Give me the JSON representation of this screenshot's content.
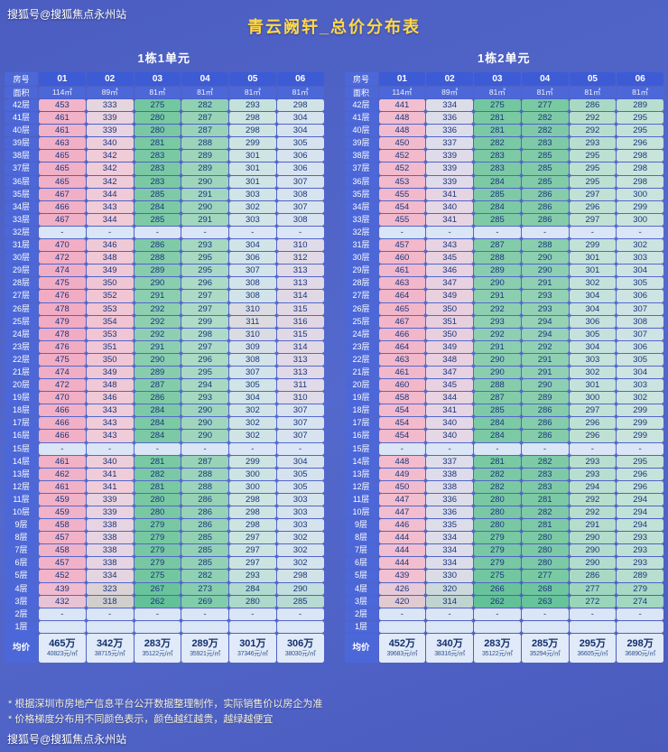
{
  "watermark_top": "搜狐号@搜狐焦点永州站",
  "watermark_bottom": "搜狐号@搜狐焦点永州站",
  "title": "青云阙轩_总价分布表",
  "footnotes": [
    "* 根据深圳市房地产信息平台公开数据整理制作，实际销售价以房企为准",
    "* 价格梯度分布用不同颜色表示，颜色越红越贵，越绿越便宜"
  ],
  "chart_data": {
    "type": "heatmap",
    "value_unit": "万",
    "colors": {
      "header_cell": "#3e5bd6",
      "label_cell": "#4c67d8",
      "cell_text": "#1a367c",
      "empty_cell": "#dae5f5",
      "avg_cell": "#e0eaf8",
      "title": "#ffd84a",
      "column_blend": 0.62,
      "scale_stops": [
        [
          32000,
          "#2eb180"
        ],
        [
          33600,
          "#5ec295"
        ],
        [
          35100,
          "#7ecaa6"
        ],
        [
          35900,
          "#a6d8c2"
        ],
        [
          36700,
          "#c7e4d9"
        ],
        [
          37400,
          "#d3e4ea"
        ],
        [
          38050,
          "#d9e2f2"
        ],
        [
          38300,
          "#f0cdda"
        ],
        [
          39700,
          "#f2bacc"
        ],
        [
          42200,
          "#f0a2bd"
        ]
      ]
    },
    "tables": [
      {
        "name": "1栋1单元",
        "room_header_label": "房号",
        "area_label": "面积",
        "columns": [
          "01",
          "02",
          "03",
          "04",
          "05",
          "06"
        ],
        "areas": [
          "114㎡",
          "89㎡",
          "81㎡",
          "81㎡",
          "81㎡",
          "81㎡"
        ],
        "area_values": [
          114,
          89,
          81,
          81,
          81,
          81
        ],
        "rows": [
          {
            "floor": "42层",
            "values": [
              453,
              333,
              275,
              282,
              293,
              298
            ]
          },
          {
            "floor": "41层",
            "values": [
              461,
              339,
              280,
              287,
              298,
              304
            ]
          },
          {
            "floor": "40层",
            "values": [
              461,
              339,
              280,
              287,
              298,
              304
            ]
          },
          {
            "floor": "39层",
            "values": [
              463,
              340,
              281,
              288,
              299,
              305
            ]
          },
          {
            "floor": "38层",
            "values": [
              465,
              342,
              283,
              289,
              301,
              306
            ]
          },
          {
            "floor": "37层",
            "values": [
              465,
              342,
              283,
              289,
              301,
              306
            ]
          },
          {
            "floor": "36层",
            "values": [
              465,
              342,
              283,
              290,
              301,
              307
            ]
          },
          {
            "floor": "35层",
            "values": [
              467,
              344,
              285,
              291,
              303,
              308
            ]
          },
          {
            "floor": "34层",
            "values": [
              466,
              343,
              284,
              290,
              302,
              307
            ]
          },
          {
            "floor": "33层",
            "values": [
              467,
              344,
              285,
              291,
              303,
              308
            ]
          },
          {
            "floor": "32层",
            "values": [
              "-",
              "-",
              "-",
              "-",
              "-",
              "-"
            ]
          },
          {
            "floor": "31层",
            "values": [
              470,
              346,
              286,
              293,
              304,
              310
            ]
          },
          {
            "floor": "30层",
            "values": [
              472,
              348,
              288,
              295,
              306,
              312
            ]
          },
          {
            "floor": "29层",
            "values": [
              474,
              349,
              289,
              295,
              307,
              313
            ]
          },
          {
            "floor": "28层",
            "values": [
              475,
              350,
              290,
              296,
              308,
              313
            ]
          },
          {
            "floor": "27层",
            "values": [
              476,
              352,
              291,
              297,
              308,
              314
            ]
          },
          {
            "floor": "26层",
            "values": [
              478,
              353,
              292,
              297,
              310,
              315
            ]
          },
          {
            "floor": "25层",
            "values": [
              479,
              354,
              292,
              299,
              311,
              316
            ]
          },
          {
            "floor": "24层",
            "values": [
              478,
              353,
              292,
              298,
              310,
              315
            ]
          },
          {
            "floor": "23层",
            "values": [
              476,
              351,
              291,
              297,
              309,
              314
            ]
          },
          {
            "floor": "22层",
            "values": [
              475,
              350,
              290,
              296,
              308,
              313
            ]
          },
          {
            "floor": "21层",
            "values": [
              474,
              349,
              289,
              295,
              307,
              313
            ]
          },
          {
            "floor": "20层",
            "values": [
              472,
              348,
              287,
              294,
              305,
              311
            ]
          },
          {
            "floor": "19层",
            "values": [
              470,
              346,
              286,
              293,
              304,
              310
            ]
          },
          {
            "floor": "18层",
            "values": [
              466,
              343,
              284,
              290,
              302,
              307
            ]
          },
          {
            "floor": "17层",
            "values": [
              466,
              343,
              284,
              290,
              302,
              307
            ]
          },
          {
            "floor": "16层",
            "values": [
              466,
              343,
              284,
              290,
              302,
              307
            ]
          },
          {
            "floor": "15层",
            "values": [
              "-",
              "-",
              "-",
              "-",
              "-",
              "-"
            ]
          },
          {
            "floor": "14层",
            "values": [
              461,
              340,
              281,
              287,
              299,
              304
            ]
          },
          {
            "floor": "13层",
            "values": [
              462,
              341,
              282,
              288,
              300,
              305
            ]
          },
          {
            "floor": "12层",
            "values": [
              461,
              341,
              281,
              288,
              300,
              305
            ]
          },
          {
            "floor": "11层",
            "values": [
              459,
              339,
              280,
              286,
              298,
              303
            ]
          },
          {
            "floor": "10层",
            "values": [
              459,
              339,
              280,
              286,
              298,
              303
            ]
          },
          {
            "floor": "9层",
            "values": [
              458,
              338,
              279,
              286,
              298,
              303
            ]
          },
          {
            "floor": "8层",
            "values": [
              457,
              338,
              279,
              285,
              297,
              302
            ]
          },
          {
            "floor": "7层",
            "values": [
              458,
              338,
              279,
              285,
              297,
              302
            ]
          },
          {
            "floor": "6层",
            "values": [
              457,
              338,
              279,
              285,
              297,
              302
            ]
          },
          {
            "floor": "5层",
            "values": [
              452,
              334,
              275,
              282,
              293,
              298
            ]
          },
          {
            "floor": "4层",
            "values": [
              439,
              323,
              267,
              273,
              284,
              290
            ]
          },
          {
            "floor": "3层",
            "values": [
              432,
              318,
              262,
              269,
              280,
              285
            ]
          },
          {
            "floor": "2层",
            "values": [
              "-",
              "-",
              "-",
              "-",
              "-",
              "-"
            ]
          },
          {
            "floor": "1层",
            "values": [
              "",
              "",
              "",
              "",
              "",
              ""
            ]
          }
        ],
        "avg_label": "均价",
        "avg_prices": [
          "465万",
          "342万",
          "283万",
          "289万",
          "301万",
          "306万"
        ],
        "avg_unit_prices": [
          "40823元/㎡",
          "38715元/㎡",
          "35122元/㎡",
          "35921元/㎡",
          "37346元/㎡",
          "38030元/㎡"
        ]
      },
      {
        "name": "1栋2单元",
        "room_header_label": "房号",
        "area_label": "面积",
        "columns": [
          "01",
          "02",
          "03",
          "04",
          "05",
          "06"
        ],
        "areas": [
          "114㎡",
          "89㎡",
          "81㎡",
          "81㎡",
          "81㎡",
          "81㎡"
        ],
        "area_values": [
          114,
          89,
          81,
          81,
          81,
          81
        ],
        "rows": [
          {
            "floor": "42层",
            "values": [
              441,
              334,
              275,
              277,
              286,
              289
            ]
          },
          {
            "floor": "41层",
            "values": [
              448,
              336,
              281,
              282,
              292,
              295
            ]
          },
          {
            "floor": "40层",
            "values": [
              448,
              336,
              281,
              282,
              292,
              295
            ]
          },
          {
            "floor": "39层",
            "values": [
              450,
              337,
              282,
              283,
              293,
              296
            ]
          },
          {
            "floor": "38层",
            "values": [
              452,
              339,
              283,
              285,
              295,
              298
            ]
          },
          {
            "floor": "37层",
            "values": [
              452,
              339,
              283,
              285,
              295,
              298
            ]
          },
          {
            "floor": "36层",
            "values": [
              453,
              339,
              284,
              285,
              295,
              298
            ]
          },
          {
            "floor": "35层",
            "values": [
              455,
              341,
              285,
              286,
              297,
              300
            ]
          },
          {
            "floor": "34层",
            "values": [
              454,
              340,
              284,
              286,
              296,
              299
            ]
          },
          {
            "floor": "33层",
            "values": [
              455,
              341,
              285,
              286,
              297,
              300
            ]
          },
          {
            "floor": "32层",
            "values": [
              "-",
              "-",
              "-",
              "-",
              "-",
              "-"
            ]
          },
          {
            "floor": "31层",
            "values": [
              457,
              343,
              287,
              288,
              299,
              302
            ]
          },
          {
            "floor": "30层",
            "values": [
              460,
              345,
              288,
              290,
              301,
              303
            ]
          },
          {
            "floor": "29层",
            "values": [
              461,
              346,
              289,
              290,
              301,
              304
            ]
          },
          {
            "floor": "28层",
            "values": [
              463,
              347,
              290,
              291,
              302,
              305
            ]
          },
          {
            "floor": "27层",
            "values": [
              464,
              349,
              291,
              293,
              304,
              306
            ]
          },
          {
            "floor": "26层",
            "values": [
              465,
              350,
              292,
              293,
              304,
              307
            ]
          },
          {
            "floor": "25层",
            "values": [
              467,
              351,
              293,
              294,
              306,
              308
            ]
          },
          {
            "floor": "24层",
            "values": [
              466,
              350,
              292,
              294,
              305,
              307
            ]
          },
          {
            "floor": "23层",
            "values": [
              464,
              349,
              291,
              292,
              304,
              306
            ]
          },
          {
            "floor": "22层",
            "values": [
              463,
              348,
              290,
              291,
              303,
              305
            ]
          },
          {
            "floor": "21层",
            "values": [
              461,
              347,
              290,
              291,
              302,
              304
            ]
          },
          {
            "floor": "20层",
            "values": [
              460,
              345,
              288,
              290,
              301,
              303
            ]
          },
          {
            "floor": "19层",
            "values": [
              458,
              344,
              287,
              289,
              300,
              302
            ]
          },
          {
            "floor": "18层",
            "values": [
              454,
              341,
              285,
              286,
              297,
              299
            ]
          },
          {
            "floor": "17层",
            "values": [
              454,
              340,
              284,
              286,
              296,
              299
            ]
          },
          {
            "floor": "16层",
            "values": [
              454,
              340,
              284,
              286,
              296,
              299
            ]
          },
          {
            "floor": "15层",
            "values": [
              "-",
              "-",
              "-",
              "-",
              "-",
              "-"
            ]
          },
          {
            "floor": "14层",
            "values": [
              448,
              337,
              281,
              282,
              293,
              295
            ]
          },
          {
            "floor": "13层",
            "values": [
              449,
              338,
              282,
              283,
              293,
              296
            ]
          },
          {
            "floor": "12层",
            "values": [
              450,
              338,
              282,
              283,
              294,
              296
            ]
          },
          {
            "floor": "11层",
            "values": [
              447,
              336,
              280,
              281,
              292,
              294
            ]
          },
          {
            "floor": "10层",
            "values": [
              447,
              336,
              280,
              282,
              292,
              294
            ]
          },
          {
            "floor": "9层",
            "values": [
              446,
              335,
              280,
              281,
              291,
              294
            ]
          },
          {
            "floor": "8层",
            "values": [
              444,
              334,
              279,
              280,
              290,
              293
            ]
          },
          {
            "floor": "7层",
            "values": [
              444,
              334,
              279,
              280,
              290,
              293
            ]
          },
          {
            "floor": "6层",
            "values": [
              444,
              334,
              279,
              280,
              290,
              293
            ]
          },
          {
            "floor": "5层",
            "values": [
              439,
              330,
              275,
              277,
              286,
              289
            ]
          },
          {
            "floor": "4层",
            "values": [
              426,
              320,
              266,
              268,
              277,
              279
            ]
          },
          {
            "floor": "3层",
            "values": [
              420,
              314,
              262,
              263,
              272,
              274
            ]
          },
          {
            "floor": "2层",
            "values": [
              "-",
              "-",
              "-",
              "-",
              "-",
              "-"
            ]
          },
          {
            "floor": "1层",
            "values": [
              "",
              "",
              "",
              "",
              "",
              ""
            ]
          }
        ],
        "avg_label": "均价",
        "avg_prices": [
          "452万",
          "340万",
          "283万",
          "285万",
          "295万",
          "298万"
        ],
        "avg_unit_prices": [
          "39683元/㎡",
          "38316元/㎡",
          "35122元/㎡",
          "35294元/㎡",
          "36605元/㎡",
          "36890元/㎡"
        ]
      }
    ]
  }
}
